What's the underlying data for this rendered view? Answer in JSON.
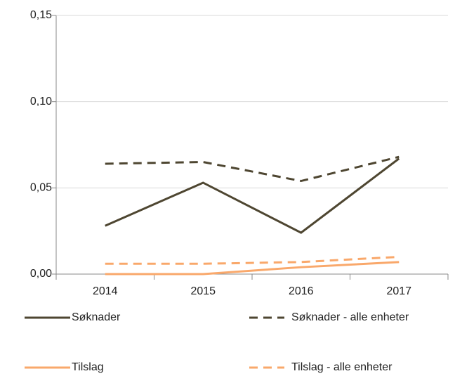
{
  "chart_data": {
    "type": "line",
    "categories": [
      "2014",
      "2015",
      "2016",
      "2017"
    ],
    "series": [
      {
        "name": "Søknader",
        "color": "#4e4631",
        "dash": false,
        "values": [
          0.028,
          0.053,
          0.024,
          0.067
        ]
      },
      {
        "name": "Søknader - alle enheter",
        "color": "#4e4631",
        "dash": true,
        "values": [
          0.064,
          0.065,
          0.054,
          0.068
        ]
      },
      {
        "name": "Tilslag",
        "color": "#f9a86b",
        "dash": false,
        "values": [
          0,
          0,
          0.004,
          0.007
        ]
      },
      {
        "name": "Tilslag - alle enheter",
        "color": "#f9a86b",
        "dash": true,
        "values": [
          0.006,
          0.006,
          0.007,
          0.01
        ]
      }
    ],
    "ylim": [
      0,
      0.15
    ],
    "yticks": [
      {
        "value": 0,
        "label": "0,00"
      },
      {
        "value": 0.05,
        "label": "0,05"
      },
      {
        "value": 0.1,
        "label": "0,10"
      },
      {
        "value": 0.15,
        "label": "0,15"
      }
    ],
    "grid": true,
    "legend": "bottom"
  }
}
